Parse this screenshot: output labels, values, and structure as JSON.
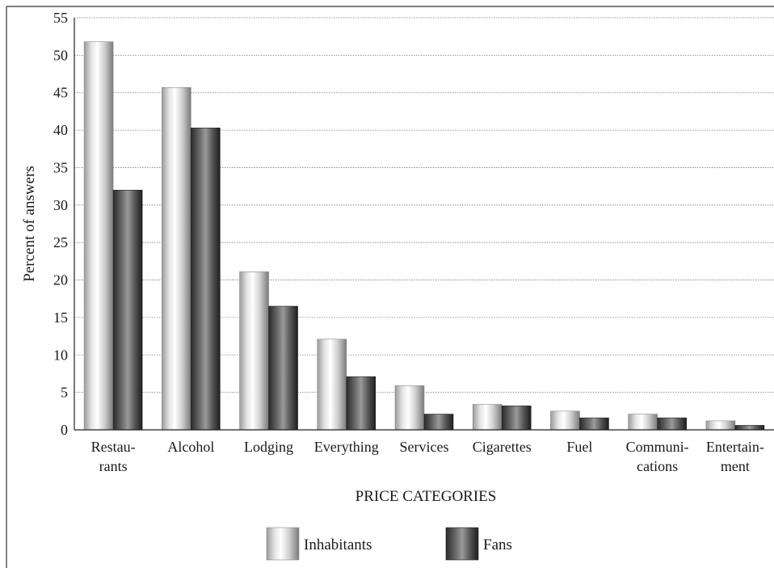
{
  "chart_data": {
    "type": "bar",
    "title": "",
    "xlabel": "PRICE CATEGORIES",
    "ylabel": "Percent of answers",
    "ylim": [
      0,
      55
    ],
    "yticks": [
      "0",
      "5",
      "10",
      "15",
      "20",
      "25",
      "30",
      "35",
      "40",
      "45",
      "50",
      "55"
    ],
    "grid": true,
    "legend_position": "bottom",
    "categories": [
      [
        "Restau-",
        "rants"
      ],
      [
        "Alcohol"
      ],
      [
        "Lodging"
      ],
      [
        "Everything"
      ],
      [
        "Services"
      ],
      [
        "Cigarettes"
      ],
      [
        "Fuel"
      ],
      [
        "Communi-",
        "cations"
      ],
      [
        "Entertain-",
        "ment"
      ]
    ],
    "series": [
      {
        "name": "Inhabitants",
        "values": [
          51.8,
          45.7,
          21.1,
          12.1,
          5.9,
          3.4,
          2.5,
          2.1,
          1.2
        ],
        "color": "#d8d8d8"
      },
      {
        "name": "Fans",
        "values": [
          32.0,
          40.3,
          16.5,
          7.1,
          2.1,
          3.2,
          1.6,
          1.6,
          0.6
        ],
        "color": "#4a4a4a"
      }
    ]
  }
}
